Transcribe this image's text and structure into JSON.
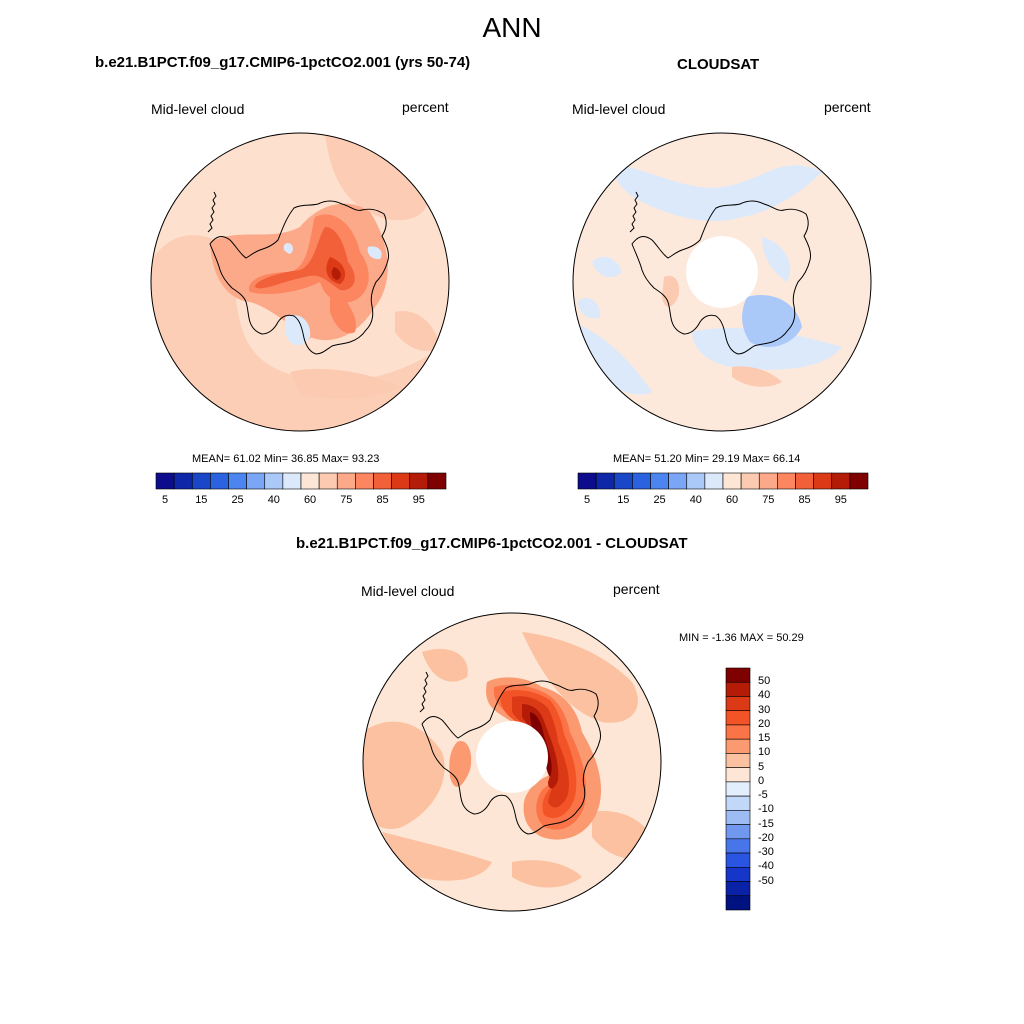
{
  "page": {
    "title": "ANN"
  },
  "panels": [
    {
      "title": "b.e21.B1PCT.f09_g17.CMIP6-1pctCO2.001 (yrs 50-74)",
      "left_label": "Mid-level cloud",
      "right_label": "percent",
      "stats": {
        "mean": "61.02",
        "min": "36.85",
        "max": "93.23"
      },
      "stats_text": "MEAN=  61.02  Min=  36.85  Max=  93.23",
      "base_color": "#fde0cd",
      "has_pole_hole": false
    },
    {
      "title": "CLOUDSAT",
      "left_label": "Mid-level cloud",
      "right_label": "percent",
      "stats": {
        "mean": "51.20",
        "min": "29.19",
        "max": "66.14"
      },
      "stats_text": "MEAN=  51.20  Min=  29.19  Max=  66.14",
      "base_color": "#fde9dc",
      "has_pole_hole": true
    },
    {
      "title": "b.e21.B1PCT.f09_g17.CMIP6-1pctCO2.001 - CLOUDSAT",
      "left_label": "Mid-level cloud",
      "right_label": "percent",
      "stats": {
        "min": "-1.36",
        "max": "50.29"
      },
      "stats_text": "MIN =  -1.36 MAX =  50.29",
      "base_color": "#fce0cf",
      "has_pole_hole": true
    }
  ],
  "colorbar_abs": {
    "colors": [
      "#0c0c8c",
      "#0d27a8",
      "#1a46c8",
      "#2a62e0",
      "#4d85f0",
      "#7aa6f5",
      "#aac8f8",
      "#dbe9fb",
      "#fde6d6",
      "#fccab1",
      "#fca989",
      "#fb8660",
      "#f2603a",
      "#dc3a17",
      "#b51c08",
      "#7f0000"
    ],
    "tick_labels": [
      "5",
      "15",
      "25",
      "40",
      "60",
      "75",
      "85",
      "95"
    ]
  },
  "colorbar_diff": {
    "colors": [
      "#7f0000",
      "#b51c08",
      "#dc3a17",
      "#f25327",
      "#fb7448",
      "#fb9a70",
      "#fcc1a0",
      "#fde6d6",
      "#e3eefc",
      "#c2d8f8",
      "#9dbcf3",
      "#6f98ee",
      "#4876ea",
      "#2a54e2",
      "#1536c8",
      "#0a22a8",
      "#00127f"
    ],
    "tick_labels": [
      "50",
      "40",
      "30",
      "20",
      "15",
      "10",
      "5",
      "0",
      "-5",
      "-10",
      "-15",
      "-20",
      "-30",
      "-40",
      "-50"
    ]
  },
  "chart_data": [
    {
      "type": "heatmap",
      "title": "b.e21.B1PCT.f09_g17.CMIP6-1pctCO2.001 (yrs 50-74)",
      "field": "Mid-level cloud",
      "units": "percent",
      "projection": "south polar stereographic",
      "mean": 61.02,
      "min": 36.85,
      "max": 93.23,
      "contour_levels": [
        5,
        10,
        15,
        20,
        25,
        30,
        35,
        40,
        45,
        50,
        55,
        60,
        65,
        70,
        75,
        80,
        85,
        90,
        95
      ]
    },
    {
      "type": "heatmap",
      "title": "CLOUDSAT",
      "field": "Mid-level cloud",
      "units": "percent",
      "projection": "south polar stereographic",
      "mean": 51.2,
      "min": 29.19,
      "max": 66.14,
      "contour_levels": [
        5,
        10,
        15,
        20,
        25,
        30,
        35,
        40,
        45,
        50,
        55,
        60,
        65,
        70,
        75,
        80,
        85,
        90,
        95
      ]
    },
    {
      "type": "heatmap",
      "title": "b.e21.B1PCT.f09_g17.CMIP6-1pctCO2.001 - CLOUDSAT",
      "field": "Mid-level cloud",
      "units": "percent",
      "projection": "south polar stereographic",
      "min": -1.36,
      "max": 50.29,
      "contour_levels": [
        -50,
        -40,
        -30,
        -20,
        -15,
        -10,
        -5,
        0,
        5,
        10,
        15,
        20,
        30,
        40,
        50
      ]
    }
  ]
}
